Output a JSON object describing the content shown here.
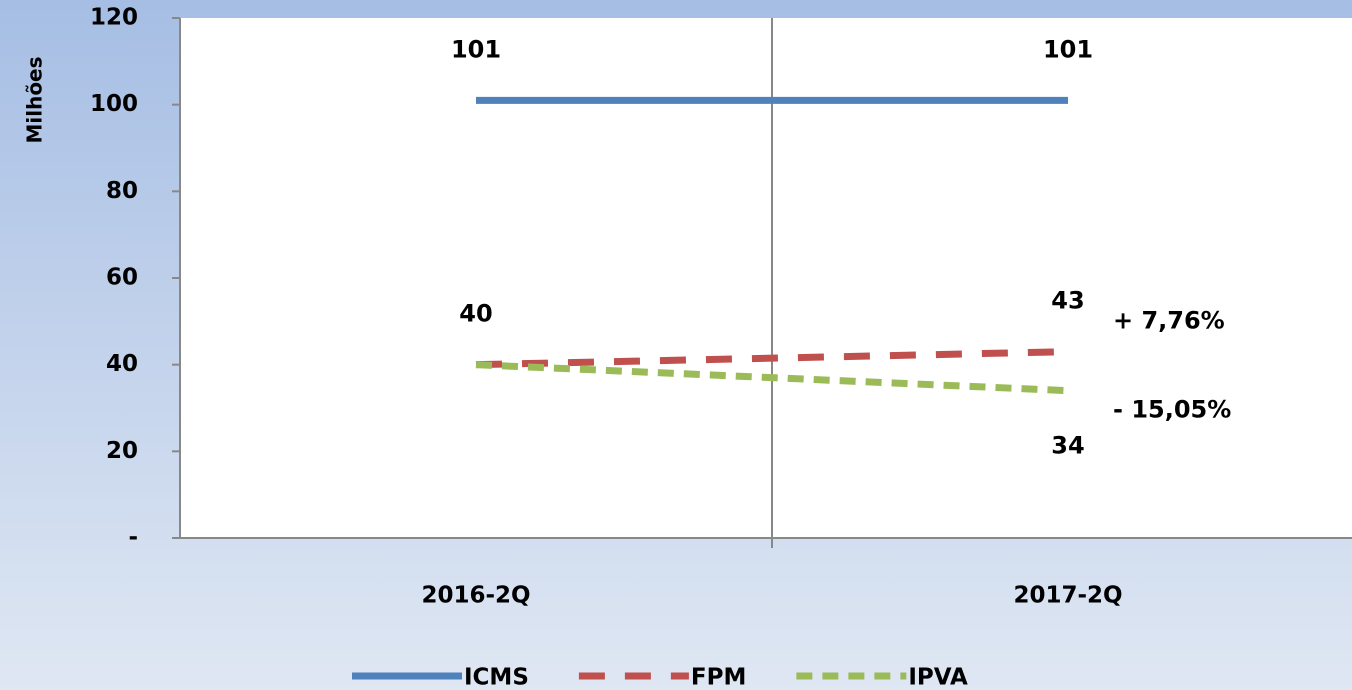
{
  "chart_data": {
    "type": "line",
    "y_label": "Milhões",
    "categories": [
      "2016-2Q",
      "2017-2Q"
    ],
    "series": [
      {
        "name": "ICMS",
        "color": "#4f81bd",
        "dash": "solid",
        "values": [
          101,
          101
        ]
      },
      {
        "name": "FPM",
        "color": "#c0504d",
        "dash": "dashed",
        "values": [
          40,
          43
        ]
      },
      {
        "name": "IPVA",
        "color": "#9bbb59",
        "dash": "dashed",
        "values": [
          40,
          34
        ],
        "value_labels": [
          null,
          "34"
        ],
        "label_position": "below"
      }
    ],
    "annotations": [
      {
        "text": "+ 7,76%",
        "series": "FPM"
      },
      {
        "text": "- 15,05%",
        "series": "IPVA"
      }
    ],
    "ylim": [
      0,
      120
    ],
    "yticks": [
      {
        "value": 0,
        "label": "-"
      },
      20,
      40,
      60,
      80,
      100,
      120
    ],
    "grid": false,
    "legend": "bottom"
  }
}
